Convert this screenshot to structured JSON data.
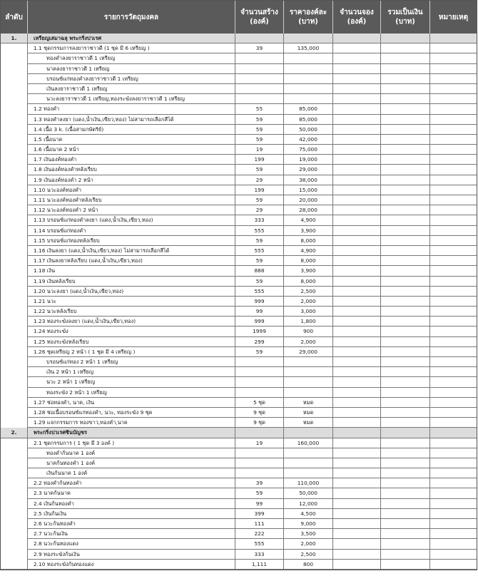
{
  "header": [
    "ลำดับ",
    "รายการวัตถุมงคล",
    "จำนวนสร้าง (องค์)",
    "ราคาองค์ละ (บาท)",
    "จำนวนจอง (องค์)",
    "รวมเป็นเงิน (บาท)",
    "หมายเหตุ"
  ],
  "sections": [
    {
      "no": "1.",
      "title": "เหรียญเสมาฉลุ พระกริ่งปวเรศ",
      "rows": [
        {
          "text": "1.1 ชุดกรรมการลงยาราชาวดี (1 ชุด มี 6 เหรียญ )",
          "qty": "39",
          "price": "135,000"
        },
        {
          "text": "ทองคำลงยาราชาวดี 1 เหรียญ",
          "sub": true
        },
        {
          "text": "นาคลงยาราชาวดี 1 เหรียญ",
          "sub": true
        },
        {
          "text": "บรอนซ์แก่ทองคำลงยาราชาวดี 1 เหรียญ",
          "sub": true
        },
        {
          "text": "เงินลงยาราชาวดี 1 เหรียญ",
          "sub": true
        },
        {
          "text": "นวะลงยาราชาวดี 1 เหรียญ,ทองระฆังลงยาราชาวดี 1 เหรียญ",
          "sub": true
        },
        {
          "text": "1.2 ทองคำ",
          "qty": "55",
          "price": "85,000"
        },
        {
          "text": "1.3 ทองคำลงยา (แดง,น้ำเงิน,เขียว,ทอง) ไม่สามารถเลือกสีได้",
          "qty": "59",
          "price": "85,000"
        },
        {
          "text": "1.4 เนื้อ 3 k. (เนื้อสามกษัตริย์)",
          "qty": "59",
          "price": "50,000"
        },
        {
          "text": "1.5 เนื้อนาค",
          "qty": "59",
          "price": "42,000"
        },
        {
          "text": "1.6 เนื้อนาค 2 หน้า",
          "qty": "19",
          "price": "75,000"
        },
        {
          "text": "1.7 เงินองค์ทองคำ",
          "qty": "199",
          "price": "19,000"
        },
        {
          "text": "1.8 เงินองค์ทองคำหลังเรียบ",
          "qty": "59",
          "price": "29,000"
        },
        {
          "text": "1.9 เงินองค์ทองคำ 2 หน้า",
          "qty": "29",
          "price": "38,000"
        },
        {
          "text": "1.10 นวะองค์ทองคำ",
          "qty": "199",
          "price": "15,000"
        },
        {
          "text": "1.11 นวะองค์ทองคำหลังเรียบ",
          "qty": "59",
          "price": "20,000"
        },
        {
          "text": "1.12 นวะองค์ทองคำ 2 หน้า",
          "qty": "29",
          "price": "28,000"
        },
        {
          "text": "1.13 บรอนซ์แก่ทองคำลงยา (แดง,น้ำเงิน,เขียว,ทอง)",
          "qty": "333",
          "price": "4,900"
        },
        {
          "text": "1.14 บรอนซ์แก่ทองคำ",
          "qty": "555",
          "price": "3,900"
        },
        {
          "text": "1.15 บรอนซ์แก่ทองหลังเรียบ",
          "qty": "59",
          "price": "8,000"
        },
        {
          "text": "1.16 เงินลงยา (แดง,น้ำเงิน,เขียว,ทอง) ไม่สามารถเลือกสีได้",
          "qty": "555",
          "price": "4,900"
        },
        {
          "text": "1.17 เงินลงยาหลังเรียบ (แดง,น้ำเงิน,เขียว,ทอง)",
          "qty": "59",
          "price": "8,000"
        },
        {
          "text": "1.18 เงิน",
          "qty": "888",
          "price": "3,900"
        },
        {
          "text": "1.19 เงินหลังเรียบ",
          "qty": "59",
          "price": "8,000"
        },
        {
          "text": "1.20 นวะลงยา (แดง,น้ำเงิน,เขียว,ทอง)",
          "qty": "555",
          "price": "2,500"
        },
        {
          "text": "1.21 นวะ",
          "qty": "999",
          "price": "2,000"
        },
        {
          "text": "1.22 นวะหลังเรียบ",
          "qty": "99",
          "price": "3,000"
        },
        {
          "text": "1.23 ทองระฆังลงยา (แดง,น้ำเงิน,เขียว,ทอง)",
          "qty": "999",
          "price": "1,800"
        },
        {
          "text": "1.24 ทองระฆัง",
          "qty": "1999",
          "price": "900"
        },
        {
          "text": "1.25 ทองระฆังหลังเรียบ",
          "qty": "299",
          "price": "2,000"
        },
        {
          "text": "1.26 ชุดเหรียญ 2 หน้า ( 1 ชุด มี 4 เหรียญ )",
          "qty": "59",
          "price": "29,000"
        },
        {
          "text": "บรอนซ์แก่ทอง 2 หน้า 1 เหรียญ",
          "sub": true
        },
        {
          "text": "เงิน 2 หน้า 1 เหรียญ",
          "sub": true
        },
        {
          "text": "นวะ 2 หน้า 1 เหรียญ",
          "sub": true
        },
        {
          "text": "ทองระฆัง 2 หน้า 1 เหรียญ",
          "sub": true
        },
        {
          "text": "1.27 ช่อทองคำ, นาค, เงิน",
          "qty": "5 ชุด",
          "price": "หมด"
        },
        {
          "text": "1.28 ช่อเนื้อบรอนซ์แก่ทองคำ, นวะ, ทองระฆัง 9 ชุด",
          "qty": "9 ชุด",
          "price": "หมด"
        },
        {
          "text": "1.29 แจกกรรมการ ทองขาว,ทองคำ,นาค",
          "qty": "9 ชุด",
          "price": "หมด"
        }
      ]
    },
    {
      "no": "2.",
      "title": "พระกริ่งปวเรศชินบัญชร",
      "rows": [
        {
          "text": "2.1 ชุดกรรมการ ( 1 ชุด มี 3 องค์ )",
          "qty": "19",
          "price": "160,000"
        },
        {
          "text": "ทองคำก้นนาค 1 องค์",
          "sub": true
        },
        {
          "text": "นาคก้นทองคำ 1 องค์",
          "sub": true
        },
        {
          "text": "เงินก้นนาค 1 องค์",
          "sub": true
        },
        {
          "text": "2.2 ทองคำก้นทองคำ",
          "qty": "39",
          "price": "110,000"
        },
        {
          "text": "2.3 นาคก้นนาค",
          "qty": "59",
          "price": "50,000"
        },
        {
          "text": "2.4 เงินก้นทองคำ",
          "qty": "99",
          "price": "12,000"
        },
        {
          "text": "2.5 เงินก้นเงิน",
          "qty": "399",
          "price": "4,500"
        },
        {
          "text": "2.6 นวะก้นทองคำ",
          "qty": "111",
          "price": "9,000"
        },
        {
          "text": "2.7 นวะก้นเงิน",
          "qty": "222",
          "price": "3,500"
        },
        {
          "text": "2.8 นวะก้นทองแดง",
          "qty": "555",
          "price": "2,000"
        },
        {
          "text": "2.9 ทองระฆังก้นเงิน",
          "qty": "333",
          "price": "2,500"
        },
        {
          "text": "2.10 ทองระฆังก้นทองแดง",
          "qty": "1,111",
          "price": "800"
        }
      ]
    }
  ]
}
